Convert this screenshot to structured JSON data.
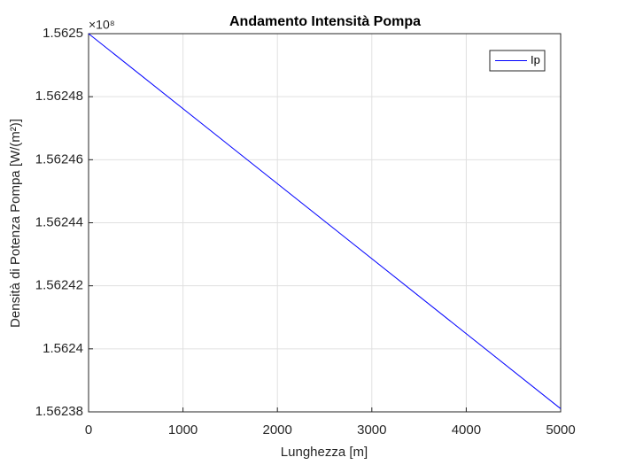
{
  "chart_data": {
    "type": "line",
    "title": "Andamento Intensità Pompa",
    "xlabel": "Lunghezza [m]",
    "ylabel": "Densità di Potenza Pompa [W/(m²)]",
    "y_multiplier": "×10⁸",
    "x": [
      0,
      5000
    ],
    "series": [
      {
        "name": "Ip",
        "color": "#0000ff",
        "values": [
          1.5625,
          1.562381
        ]
      }
    ],
    "xlim": [
      0,
      5000
    ],
    "xticks": [
      0,
      1000,
      2000,
      3000,
      4000,
      5000
    ],
    "ylim": [
      1.56238,
      1.5625
    ],
    "yticks": [
      1.56238,
      1.5624,
      1.56242,
      1.56244,
      1.56246,
      1.56248,
      1.5625
    ],
    "grid": true,
    "legend": "upper right"
  }
}
